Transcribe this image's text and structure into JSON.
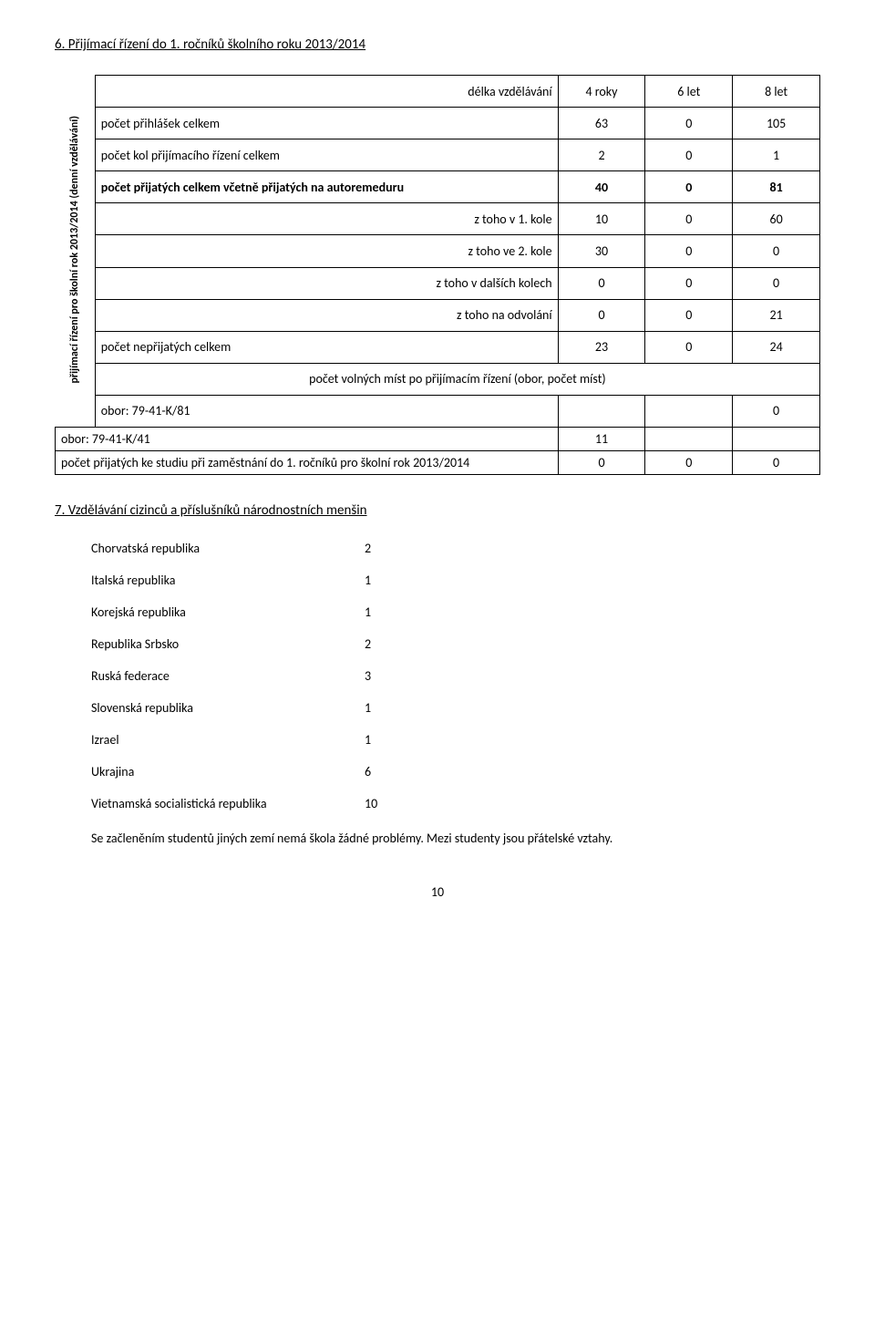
{
  "section6": {
    "title": "6. Přijímací řízení do 1. ročníků školního roku 2013/2014",
    "vertical_label": "přijímací řízení pro školní rok 2013/2014\n(denní vzdělávání)",
    "header_row": {
      "label": "délka vzdělávání",
      "cols": [
        "4 roky",
        "6 let",
        "8 let"
      ]
    },
    "rows": [
      {
        "label": "počet přihlášek celkem",
        "v": [
          "63",
          "0",
          "105"
        ]
      },
      {
        "label": "počet kol přijímacího řízení celkem",
        "v": [
          "2",
          "0",
          "1"
        ]
      },
      {
        "label": "počet přijatých celkem včetně přijatých na autoremeduru",
        "bold": true,
        "v": [
          "40",
          "0",
          "81"
        ]
      },
      {
        "label": "z toho v 1. kole",
        "align": "right",
        "v": [
          "10",
          "0",
          "60"
        ]
      },
      {
        "label": "z toho ve 2. kole",
        "align": "right",
        "v": [
          "30",
          "0",
          "0"
        ]
      },
      {
        "label": "z toho v dalších kolech",
        "align": "right",
        "v": [
          "0",
          "0",
          "0"
        ]
      },
      {
        "label": "z toho na odvolání",
        "align": "right",
        "v": [
          "0",
          "0",
          "21"
        ]
      },
      {
        "label": "počet nepřijatých celkem",
        "v": [
          "23",
          "0",
          "24"
        ]
      }
    ],
    "subheader": "počet volných míst po přijímacím řízení (obor, počet míst)",
    "obor_rows": [
      {
        "label": "obor: 79-41-K/81",
        "v": [
          "",
          "",
          "0"
        ]
      },
      {
        "label": "obor: 79-41-K/41",
        "v": [
          "11",
          "",
          ""
        ]
      }
    ],
    "footer_row": {
      "label": "počet přijatých ke studiu při zaměstnání do 1. ročníků pro školní rok 2013/2014",
      "v": [
        "0",
        "0",
        "0"
      ]
    }
  },
  "section7": {
    "title": "7. Vzdělávání cizinců a příslušníků národnostních menšin",
    "items": [
      {
        "label": "Chorvatská republika",
        "val": "2"
      },
      {
        "label": "Italská republika",
        "val": "1"
      },
      {
        "label": "Korejská republika",
        "val": "1"
      },
      {
        "label": "Republika Srbsko",
        "val": "2"
      },
      {
        "label": "Ruská federace",
        "val": "3"
      },
      {
        "label": "Slovenská republika",
        "val": "1"
      },
      {
        "label": "Izrael",
        "val": "1"
      },
      {
        "label": "Ukrajina",
        "val": "6"
      },
      {
        "label": "Vietnamská socialistická republika",
        "val": "10"
      }
    ],
    "para": "Se začleněním studentů jiných zemí nemá škola žádné problémy. Mezi studenty jsou přátelské vztahy."
  },
  "page_number": "10"
}
